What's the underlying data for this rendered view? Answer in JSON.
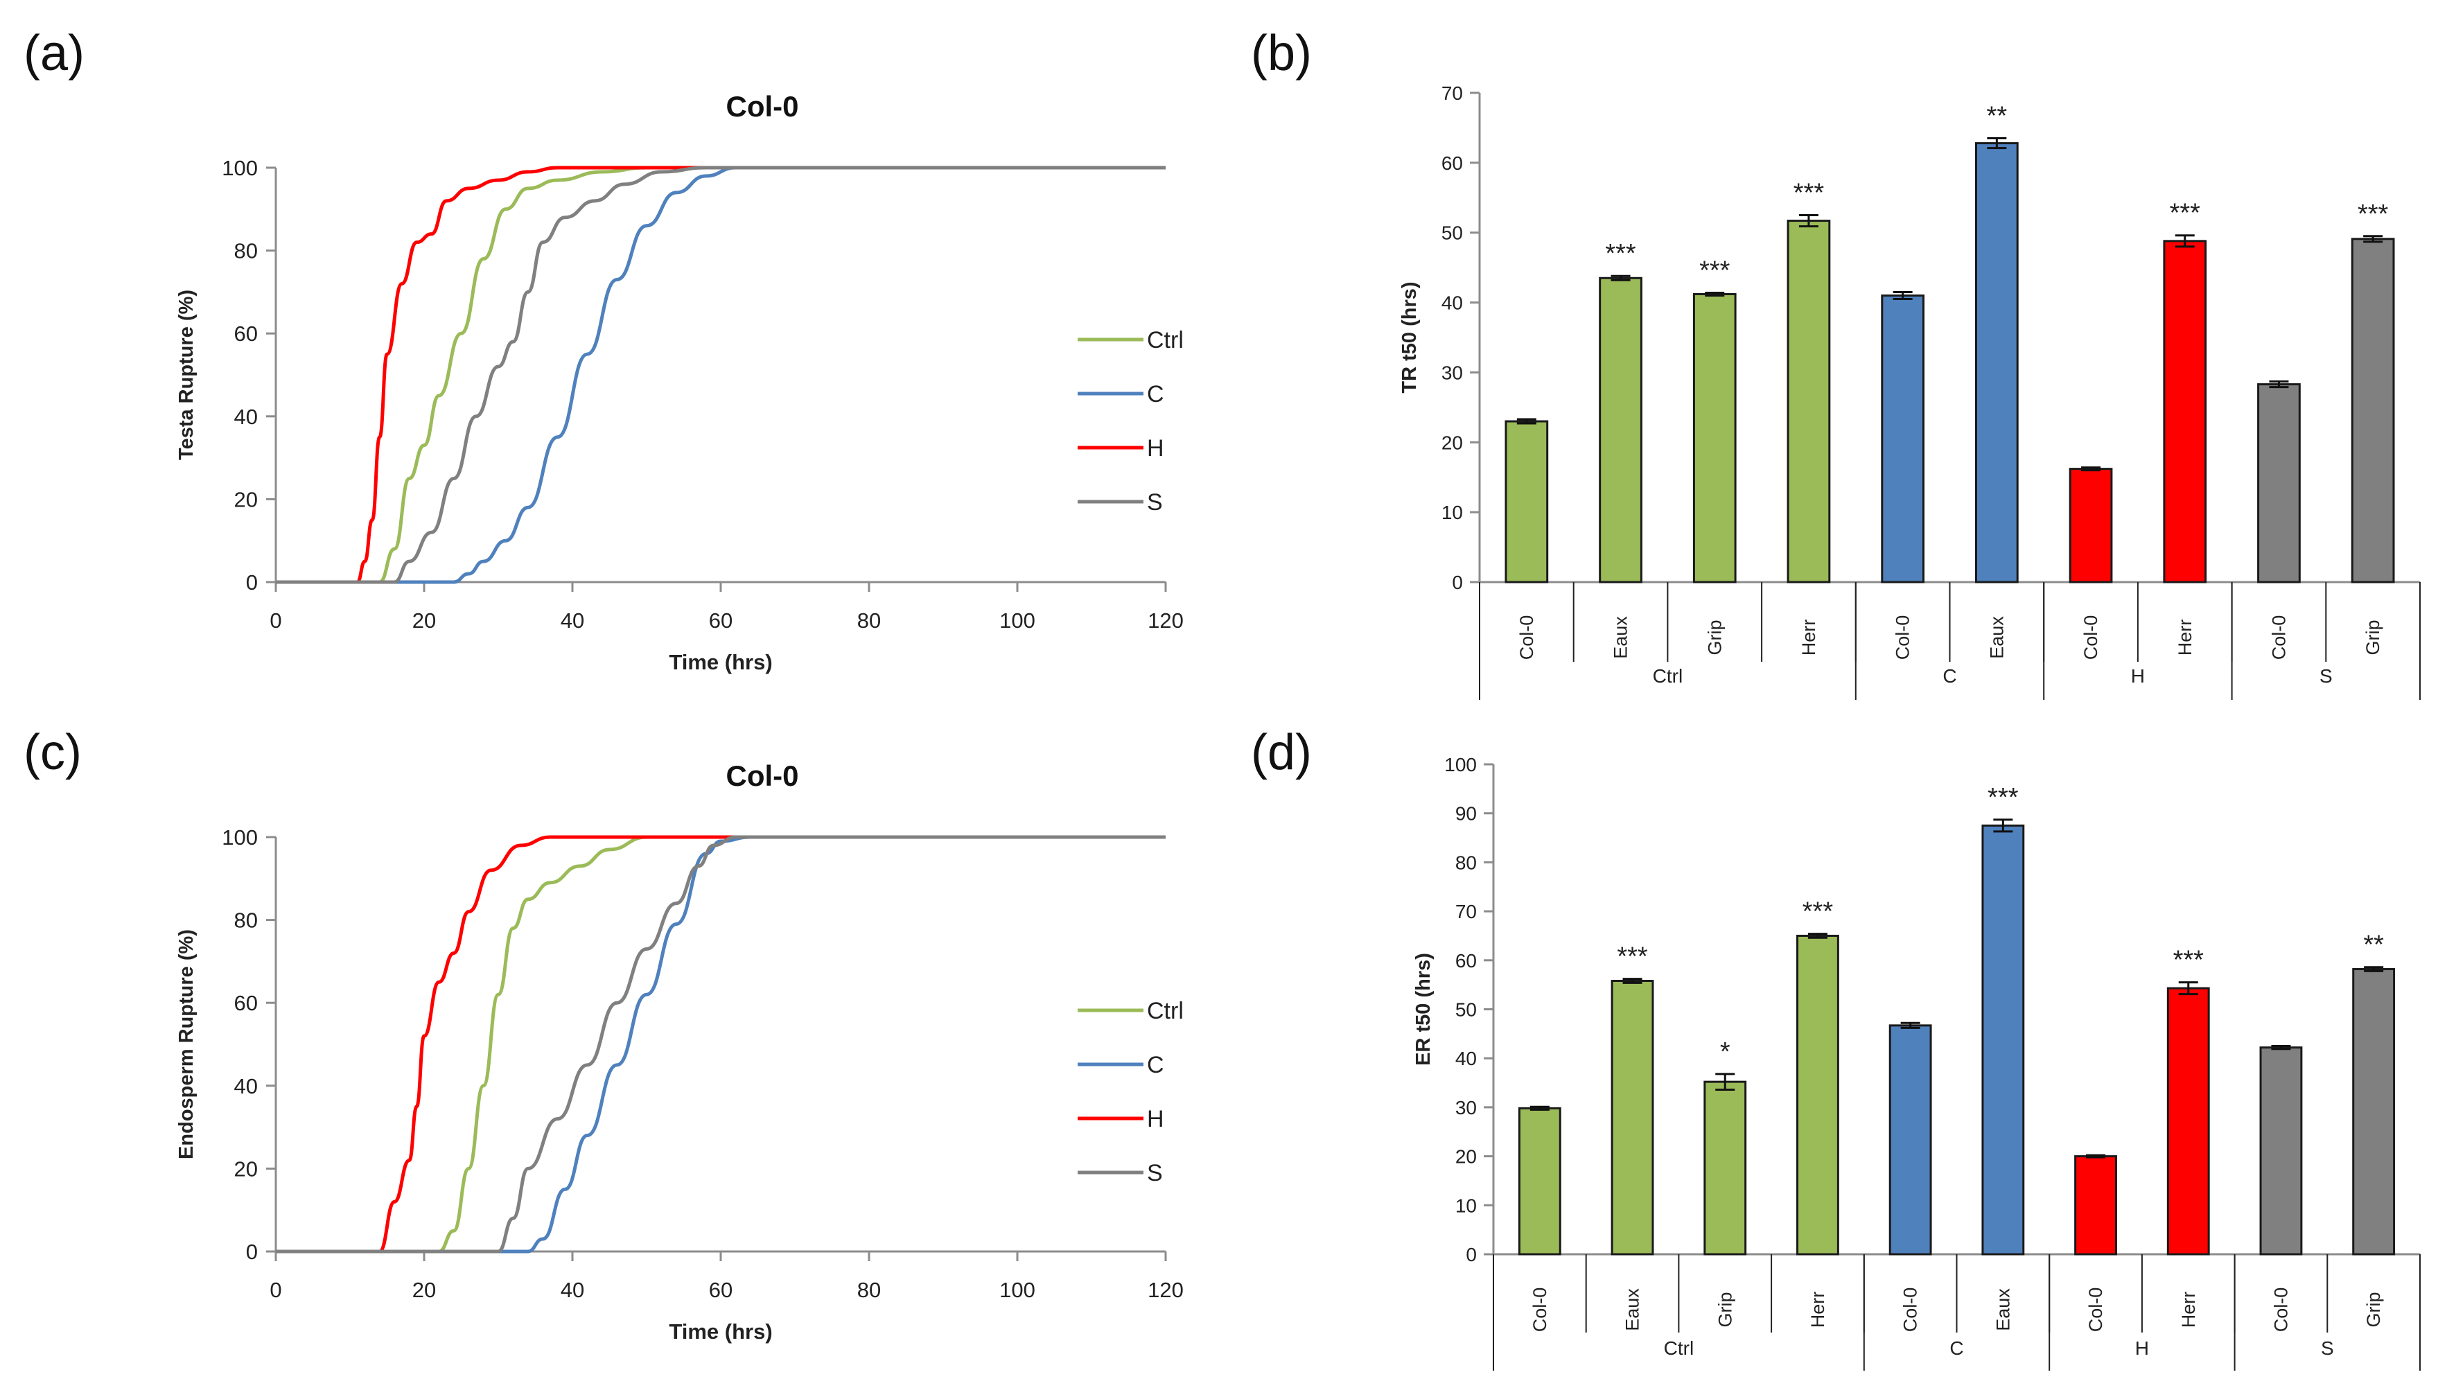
{
  "panels": {
    "a": "(a)",
    "b": "(b)",
    "c": "(c)",
    "d": "(d)"
  },
  "colors": {
    "Ctrl": "#9bbb59",
    "C": "#4f81bd",
    "H": "#ff0000",
    "S": "#808080",
    "axis": "#8c8c8c",
    "text": "#222222"
  },
  "chart_data": [
    {
      "id": "a",
      "type": "line",
      "title": "Col-0",
      "xlabel": "Time (hrs)",
      "ylabel": "Testa Rupture (%)",
      "xlim": [
        0,
        120
      ],
      "ylim": [
        0,
        100
      ],
      "xticks": [
        0,
        20,
        40,
        60,
        80,
        100,
        120
      ],
      "yticks": [
        0,
        20,
        40,
        60,
        80,
        100
      ],
      "grid": false,
      "legend": "right",
      "series": [
        {
          "name": "Ctrl",
          "points": [
            [
              0,
              0
            ],
            [
              14,
              0
            ],
            [
              16,
              8
            ],
            [
              18,
              25
            ],
            [
              20,
              33
            ],
            [
              22,
              45
            ],
            [
              25,
              60
            ],
            [
              28,
              78
            ],
            [
              31,
              90
            ],
            [
              34,
              95
            ],
            [
              38,
              97
            ],
            [
              44,
              99
            ],
            [
              50,
              100
            ],
            [
              120,
              100
            ]
          ]
        },
        {
          "name": "C",
          "points": [
            [
              0,
              0
            ],
            [
              24,
              0
            ],
            [
              26,
              2
            ],
            [
              28,
              5
            ],
            [
              31,
              10
            ],
            [
              34,
              18
            ],
            [
              38,
              35
            ],
            [
              42,
              55
            ],
            [
              46,
              73
            ],
            [
              50,
              86
            ],
            [
              54,
              94
            ],
            [
              58,
              98
            ],
            [
              62,
              100
            ],
            [
              120,
              100
            ]
          ]
        },
        {
          "name": "H",
          "points": [
            [
              0,
              0
            ],
            [
              11,
              0
            ],
            [
              12,
              5
            ],
            [
              13,
              15
            ],
            [
              14,
              35
            ],
            [
              15,
              55
            ],
            [
              17,
              72
            ],
            [
              19,
              82
            ],
            [
              21,
              84
            ],
            [
              23,
              92
            ],
            [
              26,
              95
            ],
            [
              30,
              97
            ],
            [
              34,
              99
            ],
            [
              38,
              100
            ],
            [
              120,
              100
            ]
          ]
        },
        {
          "name": "S",
          "points": [
            [
              0,
              0
            ],
            [
              16,
              0
            ],
            [
              18,
              5
            ],
            [
              21,
              12
            ],
            [
              24,
              25
            ],
            [
              27,
              40
            ],
            [
              30,
              52
            ],
            [
              32,
              58
            ],
            [
              34,
              70
            ],
            [
              36,
              82
            ],
            [
              39,
              88
            ],
            [
              43,
              92
            ],
            [
              47,
              96
            ],
            [
              52,
              99
            ],
            [
              58,
              100
            ],
            [
              120,
              100
            ]
          ]
        }
      ]
    },
    {
      "id": "b",
      "type": "bar",
      "ylabel": "TR t50 (hrs)",
      "ylim": [
        0,
        70
      ],
      "yticks": [
        0,
        10,
        20,
        30,
        40,
        50,
        60,
        70
      ],
      "grid": false,
      "bars": [
        {
          "label": "Col-0",
          "group": "Ctrl",
          "value": 23,
          "error": 0.3,
          "sig": ""
        },
        {
          "label": "Eaux",
          "group": "Ctrl",
          "value": 43.5,
          "error": 0.3,
          "sig": "***"
        },
        {
          "label": "Grip",
          "group": "Ctrl",
          "value": 41.2,
          "error": 0.2,
          "sig": "***"
        },
        {
          "label": "Herr",
          "group": "Ctrl",
          "value": 51.7,
          "error": 0.8,
          "sig": "***"
        },
        {
          "label": "Col-0",
          "group": "C",
          "value": 41,
          "error": 0.5,
          "sig": ""
        },
        {
          "label": "Eaux",
          "group": "C",
          "value": 62.8,
          "error": 0.7,
          "sig": "**"
        },
        {
          "label": "Col-0",
          "group": "H",
          "value": 16.2,
          "error": 0.2,
          "sig": ""
        },
        {
          "label": "Herr",
          "group": "H",
          "value": 48.8,
          "error": 0.8,
          "sig": "***"
        },
        {
          "label": "Col-0",
          "group": "S",
          "value": 28.3,
          "error": 0.4,
          "sig": ""
        },
        {
          "label": "Grip",
          "group": "S",
          "value": 49.1,
          "error": 0.4,
          "sig": "***"
        }
      ],
      "groups": [
        "Ctrl",
        "C",
        "H",
        "S"
      ]
    },
    {
      "id": "c",
      "type": "line",
      "title": "Col-0",
      "xlabel": "Time (hrs)",
      "ylabel": "Endosperm Rupture (%)",
      "xlim": [
        0,
        120
      ],
      "ylim": [
        0,
        100
      ],
      "xticks": [
        0,
        20,
        40,
        60,
        80,
        100,
        120
      ],
      "yticks": [
        0,
        20,
        40,
        60,
        80,
        100
      ],
      "grid": false,
      "legend": "right",
      "series": [
        {
          "name": "Ctrl",
          "points": [
            [
              0,
              0
            ],
            [
              22,
              0
            ],
            [
              24,
              5
            ],
            [
              26,
              20
            ],
            [
              28,
              40
            ],
            [
              30,
              62
            ],
            [
              32,
              78
            ],
            [
              34,
              85
            ],
            [
              37,
              89
            ],
            [
              41,
              93
            ],
            [
              45,
              97
            ],
            [
              50,
              100
            ],
            [
              120,
              100
            ]
          ]
        },
        {
          "name": "C",
          "points": [
            [
              0,
              0
            ],
            [
              34,
              0
            ],
            [
              36,
              3
            ],
            [
              39,
              15
            ],
            [
              42,
              28
            ],
            [
              46,
              45
            ],
            [
              50,
              62
            ],
            [
              54,
              79
            ],
            [
              58,
              96
            ],
            [
              60,
              99
            ],
            [
              64,
              100
            ],
            [
              120,
              100
            ]
          ]
        },
        {
          "name": "H",
          "points": [
            [
              0,
              0
            ],
            [
              14,
              0
            ],
            [
              16,
              12
            ],
            [
              18,
              22
            ],
            [
              19,
              35
            ],
            [
              20,
              52
            ],
            [
              22,
              65
            ],
            [
              24,
              72
            ],
            [
              26,
              82
            ],
            [
              29,
              92
            ],
            [
              33,
              98
            ],
            [
              37,
              100
            ],
            [
              120,
              100
            ]
          ]
        },
        {
          "name": "S",
          "points": [
            [
              0,
              0
            ],
            [
              30,
              0
            ],
            [
              32,
              8
            ],
            [
              34,
              20
            ],
            [
              38,
              32
            ],
            [
              42,
              45
            ],
            [
              46,
              60
            ],
            [
              50,
              73
            ],
            [
              54,
              84
            ],
            [
              57,
              93
            ],
            [
              59,
              98
            ],
            [
              62,
              100
            ],
            [
              120,
              100
            ]
          ]
        }
      ]
    },
    {
      "id": "d",
      "type": "bar",
      "ylabel": "ER t50 (hrs)",
      "ylim": [
        0,
        100
      ],
      "yticks": [
        0,
        10,
        20,
        30,
        40,
        50,
        60,
        70,
        80,
        90,
        100
      ],
      "grid": false,
      "bars": [
        {
          "label": "Col-0",
          "group": "Ctrl",
          "value": 29.8,
          "error": 0.3,
          "sig": ""
        },
        {
          "label": "Eaux",
          "group": "Ctrl",
          "value": 55.8,
          "error": 0.4,
          "sig": "***"
        },
        {
          "label": "Grip",
          "group": "Ctrl",
          "value": 35.2,
          "error": 1.6,
          "sig": "*"
        },
        {
          "label": "Herr",
          "group": "Ctrl",
          "value": 65,
          "error": 0.4,
          "sig": "***"
        },
        {
          "label": "Col-0",
          "group": "C",
          "value": 46.7,
          "error": 0.5,
          "sig": ""
        },
        {
          "label": "Eaux",
          "group": "C",
          "value": 87.5,
          "error": 1.2,
          "sig": "***"
        },
        {
          "label": "Col-0",
          "group": "H",
          "value": 20,
          "error": 0.2,
          "sig": ""
        },
        {
          "label": "Herr",
          "group": "H",
          "value": 54.3,
          "error": 1.2,
          "sig": "***"
        },
        {
          "label": "Col-0",
          "group": "S",
          "value": 42.2,
          "error": 0.3,
          "sig": ""
        },
        {
          "label": "Grip",
          "group": "S",
          "value": 58.2,
          "error": 0.4,
          "sig": "**"
        }
      ],
      "groups": [
        "Ctrl",
        "C",
        "H",
        "S"
      ]
    }
  ]
}
